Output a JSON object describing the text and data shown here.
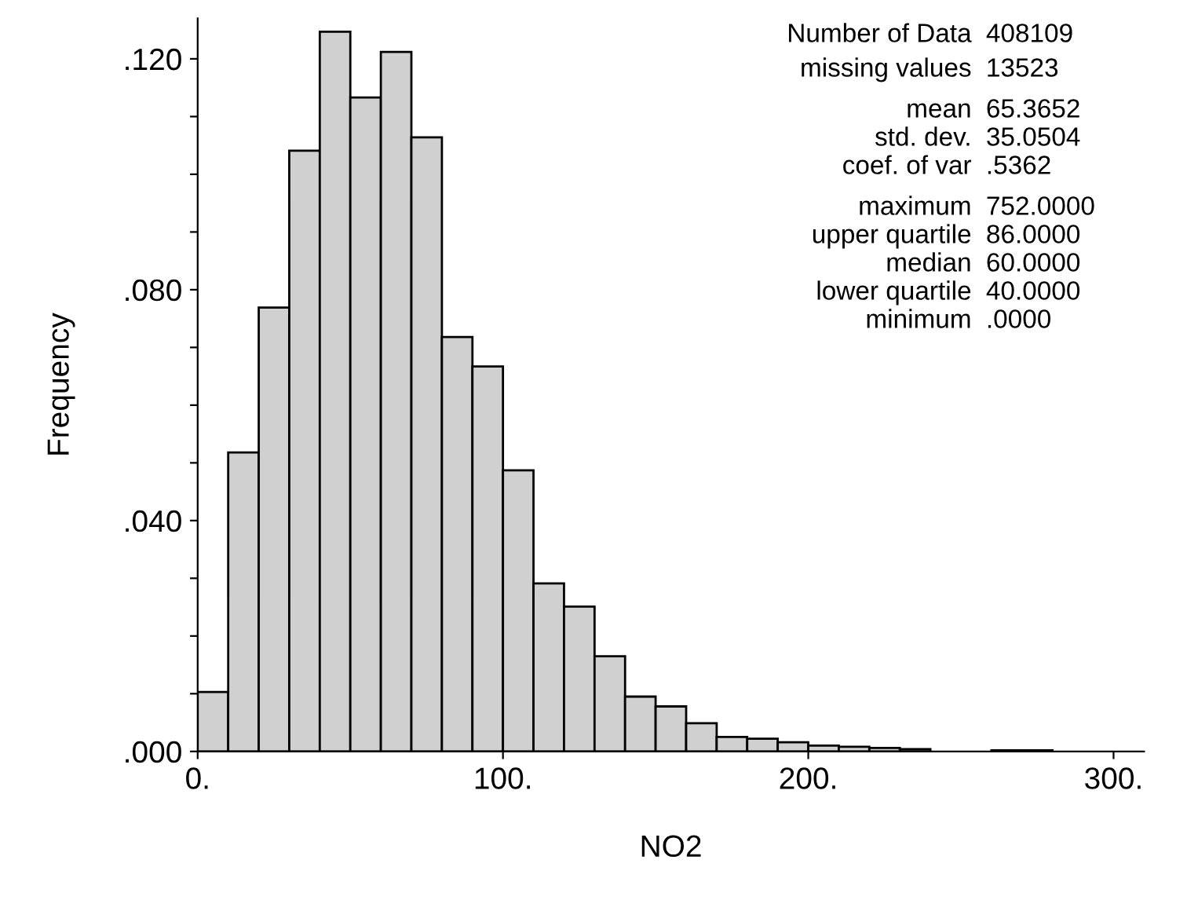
{
  "chart_data": {
    "type": "histogram",
    "xlabel": "NO2",
    "ylabel": "Frequency",
    "bins": [
      0,
      10,
      20,
      30,
      40,
      50,
      60,
      70,
      80,
      90,
      100,
      110,
      120,
      130,
      140,
      150,
      160,
      170,
      180,
      190,
      200,
      210,
      220,
      230,
      240,
      250,
      260,
      270,
      280,
      290,
      300
    ],
    "values": [
      0.0103,
      0.0518,
      0.0769,
      0.1041,
      0.1247,
      0.1133,
      0.1212,
      0.1064,
      0.0718,
      0.0667,
      0.0487,
      0.0291,
      0.0251,
      0.0165,
      0.0095,
      0.0078,
      0.0049,
      0.0025,
      0.0022,
      0.0016,
      0.001,
      0.0008,
      0.0006,
      0.0004,
      null,
      null,
      0.0002,
      0.0002,
      null,
      null
    ],
    "color": "#d0d0d0",
    "xlim": [
      0,
      310
    ],
    "ylim": [
      0,
      0.127
    ],
    "xticks": [
      {
        "value": 0,
        "label": "0."
      },
      {
        "value": 100,
        "label": "100."
      },
      {
        "value": 200,
        "label": "200."
      },
      {
        "value": 300,
        "label": "300."
      }
    ],
    "yticks": [
      {
        "value": 0,
        "label": ".000"
      },
      {
        "value": 0.01,
        "label": null
      },
      {
        "value": 0.02,
        "label": null
      },
      {
        "value": 0.03,
        "label": null
      },
      {
        "value": 0.04,
        "label": ".040"
      },
      {
        "value": 0.05,
        "label": null
      },
      {
        "value": 0.06,
        "label": null
      },
      {
        "value": 0.07,
        "label": null
      },
      {
        "value": 0.08,
        "label": ".080"
      },
      {
        "value": 0.09,
        "label": null
      },
      {
        "value": 0.1,
        "label": null
      },
      {
        "value": 0.11,
        "label": null
      },
      {
        "value": 0.12,
        "label": ".120"
      }
    ],
    "grid": false,
    "annotations": [
      "Number of Data",
      "408109",
      "missing values",
      "13523",
      "mean",
      "65.3652",
      "std. dev.",
      "35.0504",
      "coef. of var",
      ".5362",
      "maximum",
      "752.0000",
      "upper quartile",
      "86.0000",
      "median",
      "60.0000",
      "lower quartile",
      "40.0000",
      "minimum",
      ".0000"
    ]
  }
}
